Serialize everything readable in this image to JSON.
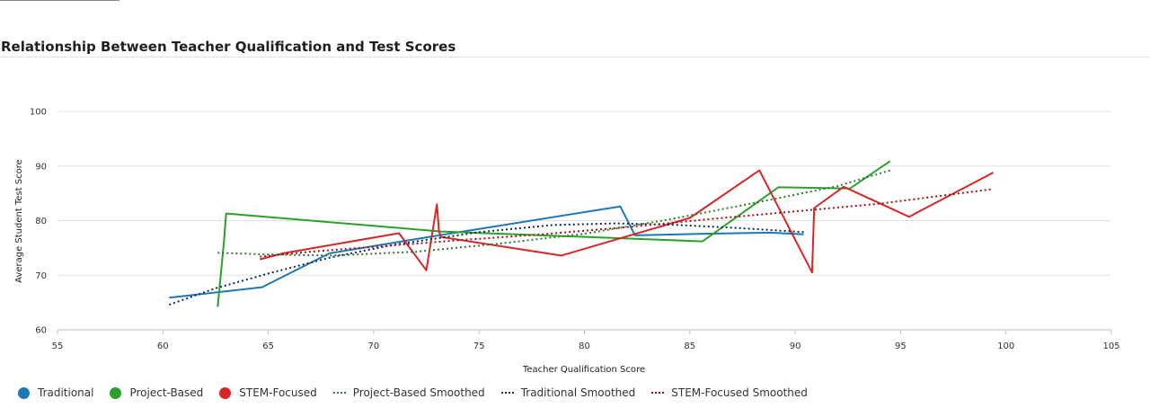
{
  "chart_data": {
    "type": "line",
    "title": "Relationship Between Teacher Qualification and Test Scores",
    "xlabel": "Teacher Qualification Score",
    "ylabel": "Average Student Test Score",
    "xlim": [
      55,
      105
    ],
    "ylim": [
      60,
      100
    ],
    "xticks": [
      55,
      60,
      65,
      70,
      75,
      80,
      85,
      90,
      95,
      100,
      105
    ],
    "yticks": [
      60,
      70,
      80,
      90,
      100
    ],
    "grid": "horizontal",
    "legend_position": "bottom-left",
    "series": [
      {
        "name": "Traditional",
        "style": "solid",
        "color": "#1f77b4",
        "points": [
          [
            60.3,
            65.9
          ],
          [
            64.7,
            67.8
          ],
          [
            67.9,
            74.0
          ],
          [
            73.1,
            77.3
          ],
          [
            81.7,
            82.6
          ],
          [
            82.4,
            77.3
          ],
          [
            85.7,
            77.6
          ],
          [
            88.8,
            77.8
          ],
          [
            90.4,
            77.5
          ]
        ]
      },
      {
        "name": "Project-Based",
        "style": "solid",
        "color": "#2ca02c",
        "points": [
          [
            62.6,
            64.2
          ],
          [
            62.9,
            76.2
          ],
          [
            63.0,
            81.3
          ],
          [
            73.2,
            78.0
          ],
          [
            85.6,
            76.2
          ],
          [
            89.2,
            86.1
          ],
          [
            92.6,
            85.9
          ],
          [
            94.5,
            90.9
          ]
        ]
      },
      {
        "name": "STEM-Focused",
        "style": "solid",
        "color": "#d62728",
        "points": [
          [
            64.6,
            72.9
          ],
          [
            65.7,
            74.0
          ],
          [
            71.2,
            77.7
          ],
          [
            72.5,
            70.9
          ],
          [
            73.0,
            83.0
          ],
          [
            73.1,
            78.0
          ],
          [
            73.2,
            77.0
          ],
          [
            78.9,
            73.6
          ],
          [
            85.0,
            80.5
          ],
          [
            88.3,
            89.2
          ],
          [
            90.8,
            70.5
          ],
          [
            90.9,
            82.3
          ],
          [
            92.3,
            86.2
          ],
          [
            95.4,
            80.7
          ],
          [
            99.4,
            88.8
          ]
        ]
      },
      {
        "name": "Project-Based Smoothed",
        "style": "dotted",
        "color": "#2e7d32",
        "points": [
          [
            62.6,
            74.1
          ],
          [
            65.0,
            73.8
          ],
          [
            68.0,
            73.6
          ],
          [
            72.0,
            74.3
          ],
          [
            76.0,
            75.8
          ],
          [
            80.0,
            77.6
          ],
          [
            84.0,
            80.2
          ],
          [
            88.0,
            83.2
          ],
          [
            92.0,
            86.3
          ],
          [
            94.5,
            89.2
          ]
        ]
      },
      {
        "name": "Traditional Smoothed",
        "style": "dotted",
        "color": "#0d2c5a",
        "points": [
          [
            60.3,
            64.6
          ],
          [
            62.5,
            67.6
          ],
          [
            65.0,
            70.3
          ],
          [
            68.0,
            73.3
          ],
          [
            71.0,
            75.6
          ],
          [
            75.0,
            77.9
          ],
          [
            78.5,
            79.2
          ],
          [
            81.5,
            79.5
          ],
          [
            84.5,
            79.2
          ],
          [
            87.5,
            78.6
          ],
          [
            90.4,
            77.9
          ]
        ]
      },
      {
        "name": "STEM-Focused Smoothed",
        "style": "dotted",
        "color": "#a3121b",
        "points": [
          [
            64.6,
            73.4
          ],
          [
            67.0,
            74.3
          ],
          [
            70.0,
            75.2
          ],
          [
            74.0,
            76.4
          ],
          [
            78.0,
            77.5
          ],
          [
            82.0,
            78.8
          ],
          [
            86.0,
            80.3
          ],
          [
            90.0,
            81.7
          ],
          [
            94.0,
            83.1
          ],
          [
            99.4,
            85.8
          ]
        ]
      }
    ]
  }
}
